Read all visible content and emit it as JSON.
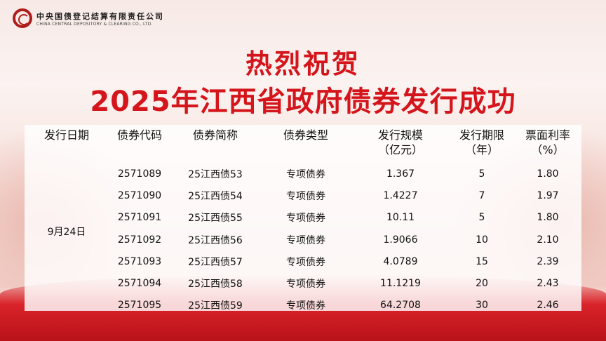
{
  "logo": {
    "cn": "中央国债登记结算有限责任公司",
    "en": "CHINA CENTRAL DEPOSITORY & CLEARING CO., LTD."
  },
  "title": {
    "line1": "热烈祝贺",
    "line2": "2025年江西省政府债券发行成功"
  },
  "table": {
    "headers": [
      [
        "发行日期",
        ""
      ],
      [
        "债券代码",
        ""
      ],
      [
        "债券简称",
        ""
      ],
      [
        "债券类型",
        ""
      ],
      [
        "发行规模",
        "（亿元）"
      ],
      [
        "发行期限",
        "（年）"
      ],
      [
        "票面利率",
        "（%）"
      ]
    ],
    "date": "9月24日",
    "rows": [
      [
        "2571089",
        "25江西债53",
        "专项债券",
        "1.367",
        "5",
        "1.80"
      ],
      [
        "2571090",
        "25江西债54",
        "专项债券",
        "1.4227",
        "7",
        "1.97"
      ],
      [
        "2571091",
        "25江西债55",
        "专项债券",
        "10.11",
        "5",
        "1.80"
      ],
      [
        "2571092",
        "25江西债56",
        "专项债券",
        "1.9066",
        "10",
        "2.10"
      ],
      [
        "2571093",
        "25江西债57",
        "专项债券",
        "4.0789",
        "15",
        "2.39"
      ],
      [
        "2571094",
        "25江西债58",
        "专项债券",
        "11.1219",
        "20",
        "2.43"
      ],
      [
        "2571095",
        "25江西债59",
        "专项债券",
        "64.2708",
        "30",
        "2.46"
      ]
    ]
  },
  "colors": {
    "title": "#d4151b",
    "brand": "#b01d1d"
  }
}
